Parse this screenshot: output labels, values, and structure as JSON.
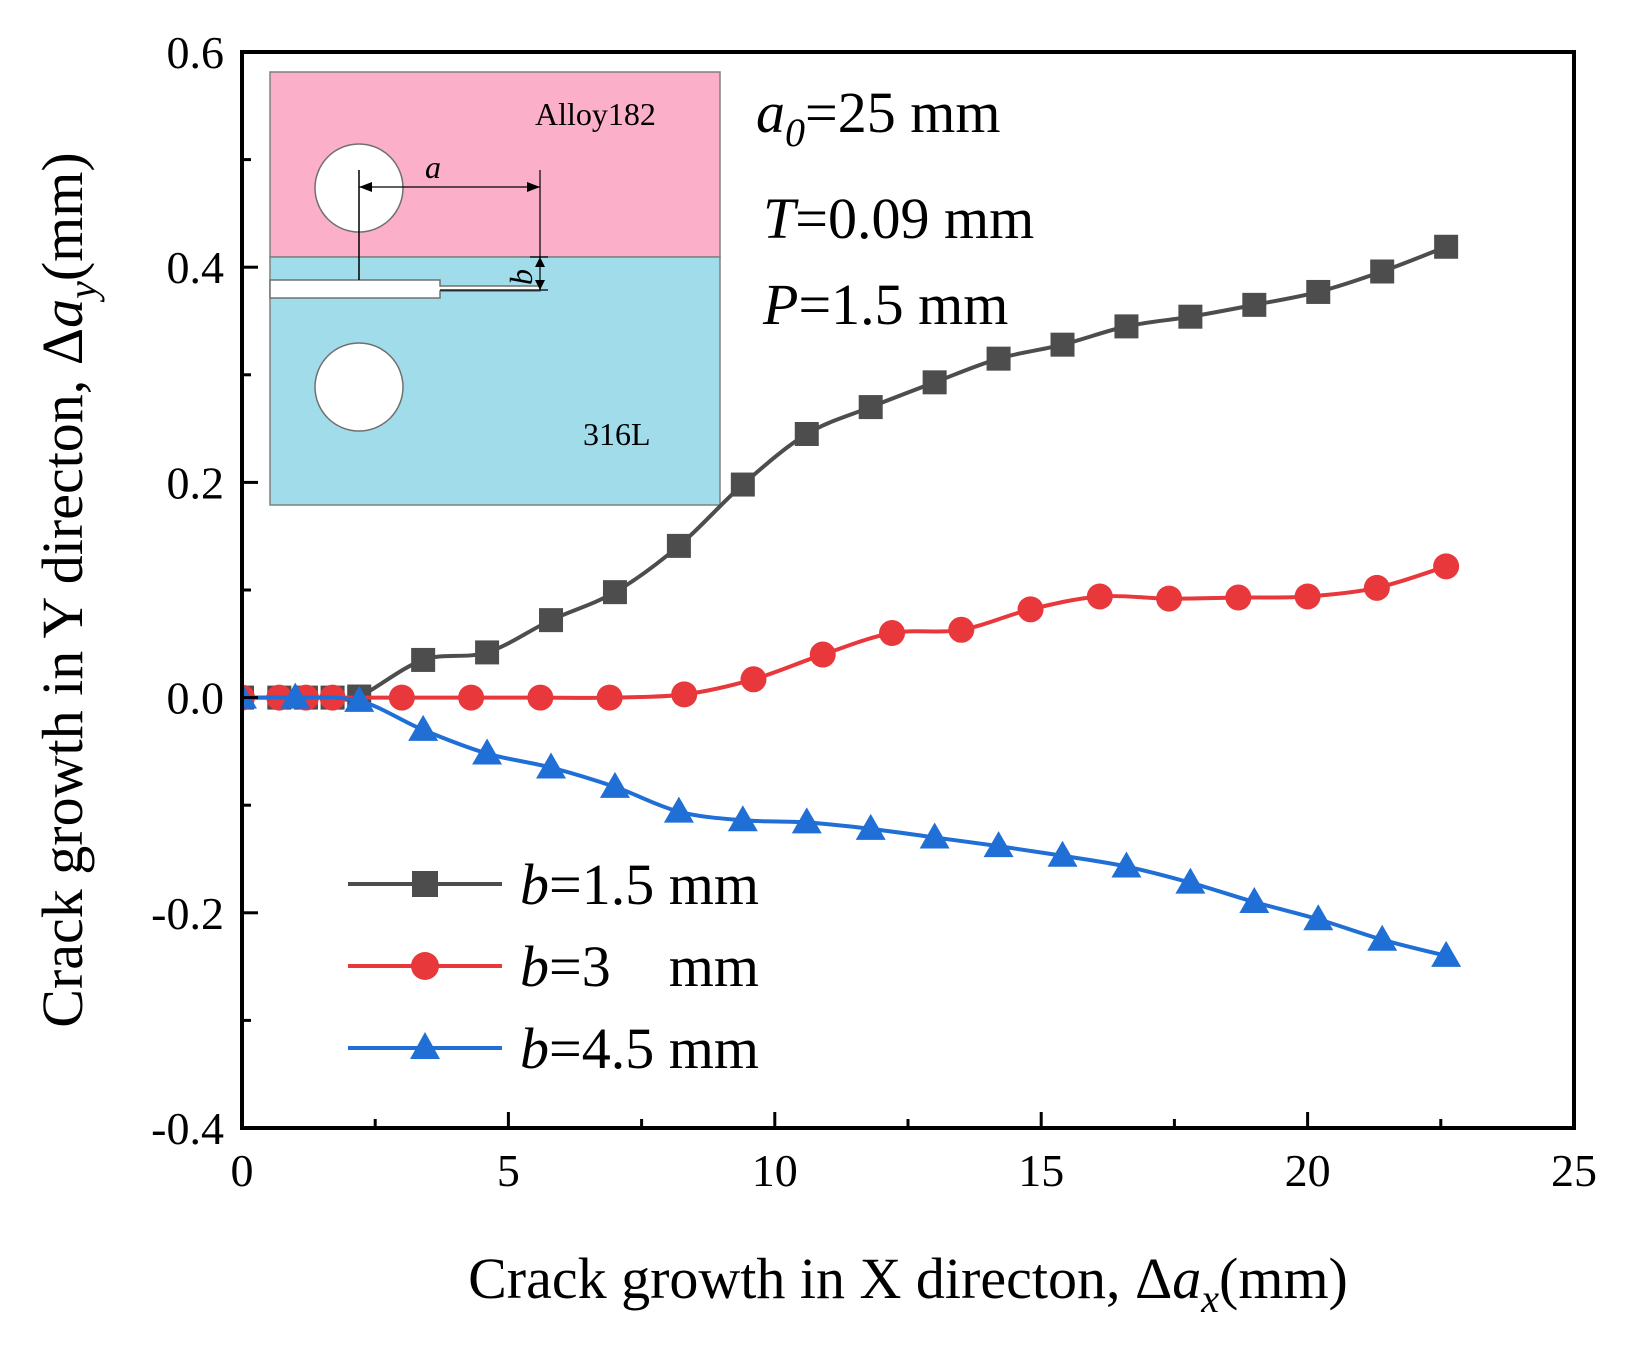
{
  "chart_data": {
    "type": "line",
    "xlabel": "Crack growth in X directon, Δa_x(mm)",
    "ylabel": "Crack growth in Y directon, Δa_y(mm)",
    "xlabel_parts": {
      "prefix": "Crack growth in X directon, Δ",
      "var": "a",
      "sub": "x",
      "suffix": "(mm)"
    },
    "ylabel_parts": {
      "prefix": "Crack growth in Y directon, Δ",
      "var": "a",
      "sub": "y",
      "suffix": "(mm)"
    },
    "xlim": [
      0,
      25
    ],
    "ylim": [
      -0.4,
      0.6
    ],
    "xticks": [
      0,
      5,
      10,
      15,
      20,
      25
    ],
    "yticks": [
      -0.4,
      -0.2,
      0.0,
      0.2,
      0.4,
      0.6
    ],
    "xtick_labels": [
      "0",
      "5",
      "10",
      "15",
      "20",
      "25"
    ],
    "ytick_labels": [
      "-0.4",
      "-0.2",
      "0.0",
      "0.2",
      "0.4",
      "0.6"
    ],
    "grid": false,
    "legend_position": "bottom-left",
    "series": [
      {
        "name": "b=1.5 mm",
        "label_var": "b",
        "label_rest": "=1.5 mm",
        "color": "#4d4d4d",
        "marker": "square",
        "x": [
          0,
          0.7,
          1.2,
          1.7,
          2.2,
          3.4,
          4.6,
          5.8,
          7.0,
          8.2,
          9.4,
          10.6,
          11.8,
          13.0,
          14.2,
          15.4,
          16.6,
          17.8,
          19.0,
          20.2,
          21.4,
          22.6
        ],
        "y": [
          0.0,
          0.0,
          0.0,
          0.0,
          0.001,
          0.035,
          0.042,
          0.072,
          0.098,
          0.141,
          0.198,
          0.245,
          0.27,
          0.293,
          0.315,
          0.328,
          0.345,
          0.354,
          0.365,
          0.377,
          0.396,
          0.419
        ]
      },
      {
        "name": "b=3 mm",
        "label_var": "b",
        "label_rest": "=3    mm",
        "color": "#e8383b",
        "marker": "circle",
        "x": [
          0,
          0.7,
          1.2,
          1.7,
          3.0,
          4.3,
          5.6,
          6.9,
          8.3,
          9.6,
          10.9,
          12.2,
          13.5,
          14.8,
          16.1,
          17.4,
          18.7,
          20.0,
          21.3,
          22.6
        ],
        "y": [
          0.0,
          0.0,
          0.0,
          0.0,
          0.0,
          0.0,
          0.0,
          0.0,
          0.003,
          0.017,
          0.04,
          0.06,
          0.063,
          0.082,
          0.094,
          0.092,
          0.093,
          0.094,
          0.102,
          0.122
        ]
      },
      {
        "name": "b=4.5 mm",
        "label_var": "b",
        "label_rest": "=4.5 mm",
        "color": "#1f6fd6",
        "marker": "triangle",
        "x": [
          0,
          1.0,
          2.2,
          3.4,
          4.6,
          5.8,
          7.0,
          8.2,
          9.4,
          10.6,
          11.8,
          13.0,
          14.2,
          15.4,
          16.6,
          17.8,
          19.0,
          20.2,
          21.4,
          22.6
        ],
        "y": [
          0.0,
          0.0,
          -0.003,
          -0.03,
          -0.052,
          -0.065,
          -0.083,
          -0.106,
          -0.114,
          -0.116,
          -0.122,
          -0.13,
          -0.138,
          -0.147,
          -0.157,
          -0.172,
          -0.19,
          -0.206,
          -0.225,
          -0.24
        ]
      }
    ],
    "annotations": [
      {
        "var": "a",
        "sub": "0",
        "rest": "=25 mm"
      },
      {
        "var": "T",
        "sub": "",
        "rest": "=0.09 mm"
      },
      {
        "var": "P",
        "sub": "",
        "rest": "=1.5 mm"
      }
    ],
    "inset": {
      "top_material": "Alloy182",
      "bottom_material": "316L",
      "dim_a": "a",
      "dim_b": "b",
      "top_color": "#fcafc8",
      "bottom_color": "#a0dcea"
    }
  }
}
